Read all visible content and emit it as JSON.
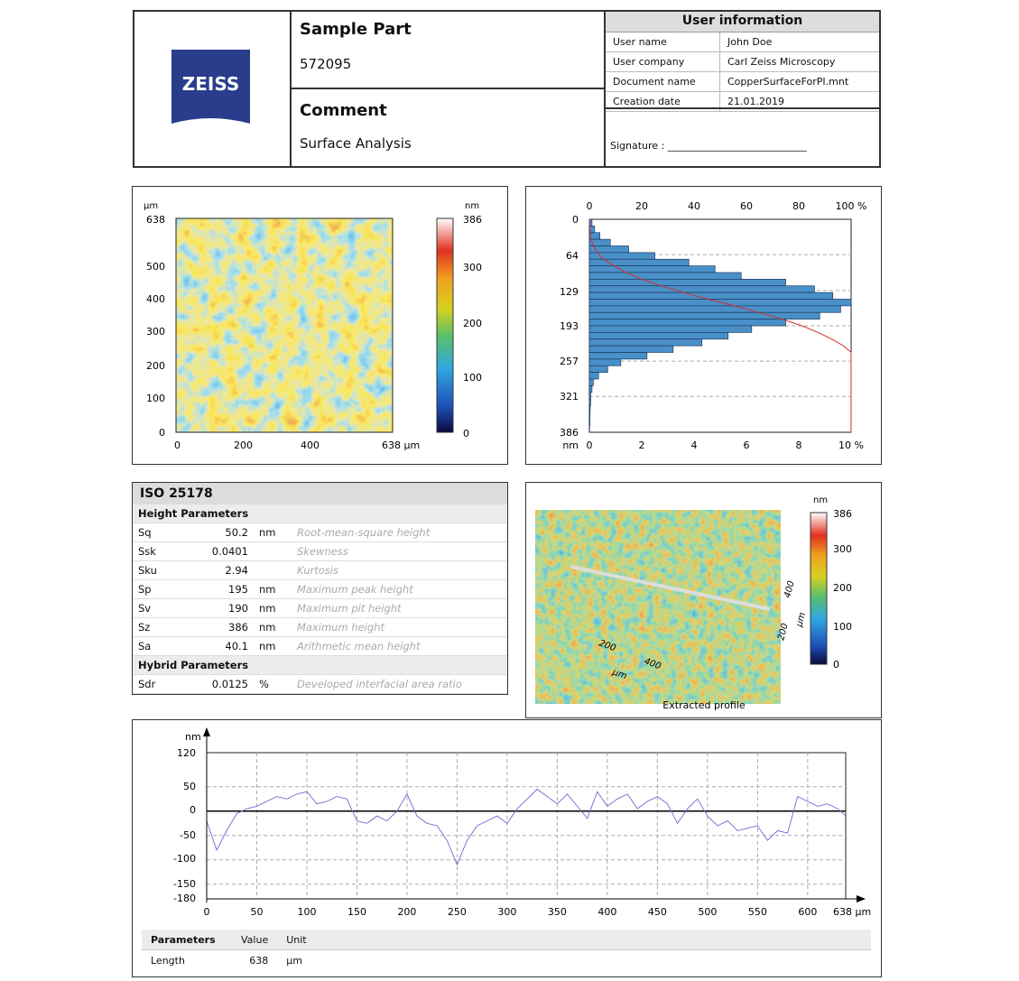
{
  "header": {
    "logo_text": "ZEISS",
    "part_label": "Sample Part",
    "part_value": "572095",
    "comment_label": "Comment",
    "comment_value": "Surface Analysis",
    "user_info_title": "User information",
    "user_info": [
      {
        "k": "User name",
        "v": "John Doe"
      },
      {
        "k": "User company",
        "v": "Carl Zeiss Microscopy"
      },
      {
        "k": "Document name",
        "v": "CopperSurfaceForPI.mnt"
      },
      {
        "k": "Creation date",
        "v": "21.01.2019"
      }
    ],
    "signature_label": "Signature : ____________________________"
  },
  "height_map": {
    "y_unit": "µm",
    "y_ticks": [
      "638",
      "500",
      "400",
      "300",
      "200",
      "100",
      "0"
    ],
    "x_ticks": [
      "0",
      "200",
      "400",
      "638 µm"
    ],
    "scale_unit": "nm",
    "scale_ticks": [
      "386",
      "300",
      "200",
      "100",
      "0"
    ]
  },
  "histogram": {
    "top_ticks": [
      "0",
      "20",
      "40",
      "60",
      "80",
      "100 %"
    ],
    "y_ticks": [
      "0",
      "64",
      "129",
      "193",
      "257",
      "321",
      "386"
    ],
    "y_unit": "nm",
    "bottom_ticks": [
      "0",
      "2",
      "4",
      "6",
      "8",
      "10 %"
    ]
  },
  "iso": {
    "title": "ISO 25178",
    "height_section": "Height Parameters",
    "rows": [
      {
        "name": "Sq",
        "value": "50.2",
        "unit": "nm",
        "desc": "Root-mean-square height"
      },
      {
        "name": "Ssk",
        "value": "0.0401",
        "unit": "",
        "desc": "Skewness"
      },
      {
        "name": "Sku",
        "value": "2.94",
        "unit": "",
        "desc": "Kurtosis"
      },
      {
        "name": "Sp",
        "value": "195",
        "unit": "nm",
        "desc": "Maximum peak height"
      },
      {
        "name": "Sv",
        "value": "190",
        "unit": "nm",
        "desc": "Maximum pit height"
      },
      {
        "name": "Sz",
        "value": "386",
        "unit": "nm",
        "desc": "Maximum height"
      },
      {
        "name": "Sa",
        "value": "40.1",
        "unit": "nm",
        "desc": "Arithmetic mean height"
      }
    ],
    "hybrid_section": "Hybrid Parameters",
    "hybrid_rows": [
      {
        "name": "Sdr",
        "value": "0.0125",
        "unit": "%",
        "desc": "Developed interfacial area ratio"
      }
    ]
  },
  "view3d": {
    "scale_unit": "nm",
    "scale_ticks": [
      "386",
      "300",
      "200",
      "100",
      "0"
    ],
    "axis_y_ticks": [
      "200",
      "400"
    ],
    "axis_y_unit": "µm",
    "axis_x_ticks": [
      "200",
      "400"
    ],
    "axis_x_unit": "µm",
    "caption": "Extracted profile"
  },
  "profile": {
    "y_unit": "nm",
    "y_ticks": [
      "120",
      "50",
      "0",
      "-50",
      "-100",
      "-150",
      "-180"
    ],
    "x_ticks": [
      "0",
      "50",
      "100",
      "150",
      "200",
      "250",
      "300",
      "350",
      "400",
      "450",
      "500",
      "550",
      "600"
    ],
    "x_end_label": "638 µm",
    "param_headers": [
      "Parameters",
      "Value",
      "Unit"
    ],
    "param_rows": [
      {
        "name": "Length",
        "value": "638",
        "unit": "µm"
      }
    ]
  },
  "chart_data": [
    {
      "type": "bar",
      "orientation": "horizontal",
      "categories_nm": [
        0,
        12,
        24,
        36,
        48,
        60,
        72,
        84,
        96,
        108,
        120,
        132,
        144,
        156,
        168,
        180,
        192,
        204,
        216,
        228,
        240,
        252,
        264,
        276,
        288,
        300,
        312,
        324,
        336,
        348,
        360,
        372
      ],
      "values_pct": [
        0.1,
        0.2,
        0.4,
        0.8,
        1.5,
        2.5,
        3.8,
        4.8,
        5.8,
        7.5,
        8.6,
        9.3,
        10,
        9.6,
        8.8,
        7.5,
        6.2,
        5.3,
        4.3,
        3.2,
        2.2,
        1.2,
        0.7,
        0.35,
        0.15,
        0.1,
        0.05,
        0.05,
        0.03,
        0.02,
        0.02,
        0.01
      ],
      "bottom_axis": "0-10 %",
      "top_axis": "0-100 %",
      "y_range_nm": [
        0,
        386
      ]
    },
    {
      "type": "line",
      "x_unit": "µm",
      "y_unit": "nm",
      "xlim": [
        0,
        638
      ],
      "ylim": [
        -180,
        120
      ],
      "x": [
        0,
        10,
        20,
        30,
        40,
        50,
        60,
        70,
        80,
        90,
        100,
        110,
        120,
        130,
        140,
        150,
        160,
        170,
        180,
        190,
        200,
        210,
        220,
        230,
        240,
        250,
        260,
        270,
        280,
        290,
        300,
        310,
        320,
        330,
        340,
        350,
        360,
        370,
        380,
        390,
        400,
        410,
        420,
        430,
        440,
        450,
        460,
        470,
        480,
        490,
        500,
        510,
        520,
        530,
        540,
        550,
        560,
        570,
        580,
        590,
        600,
        610,
        620,
        630,
        638
      ],
      "y": [
        -20,
        -80,
        -40,
        -5,
        5,
        10,
        20,
        30,
        25,
        35,
        40,
        15,
        20,
        30,
        25,
        -20,
        -25,
        -10,
        -20,
        0,
        35,
        -10,
        -25,
        -30,
        -60,
        -110,
        -60,
        -30,
        -20,
        -10,
        -25,
        5,
        25,
        45,
        30,
        15,
        35,
        10,
        -15,
        40,
        10,
        25,
        35,
        5,
        20,
        30,
        15,
        -25,
        5,
        25,
        -10,
        -30,
        -20,
        -40,
        -35,
        -30,
        -60,
        -40,
        -45,
        30,
        20,
        10,
        15,
        5,
        -10
      ]
    }
  ]
}
